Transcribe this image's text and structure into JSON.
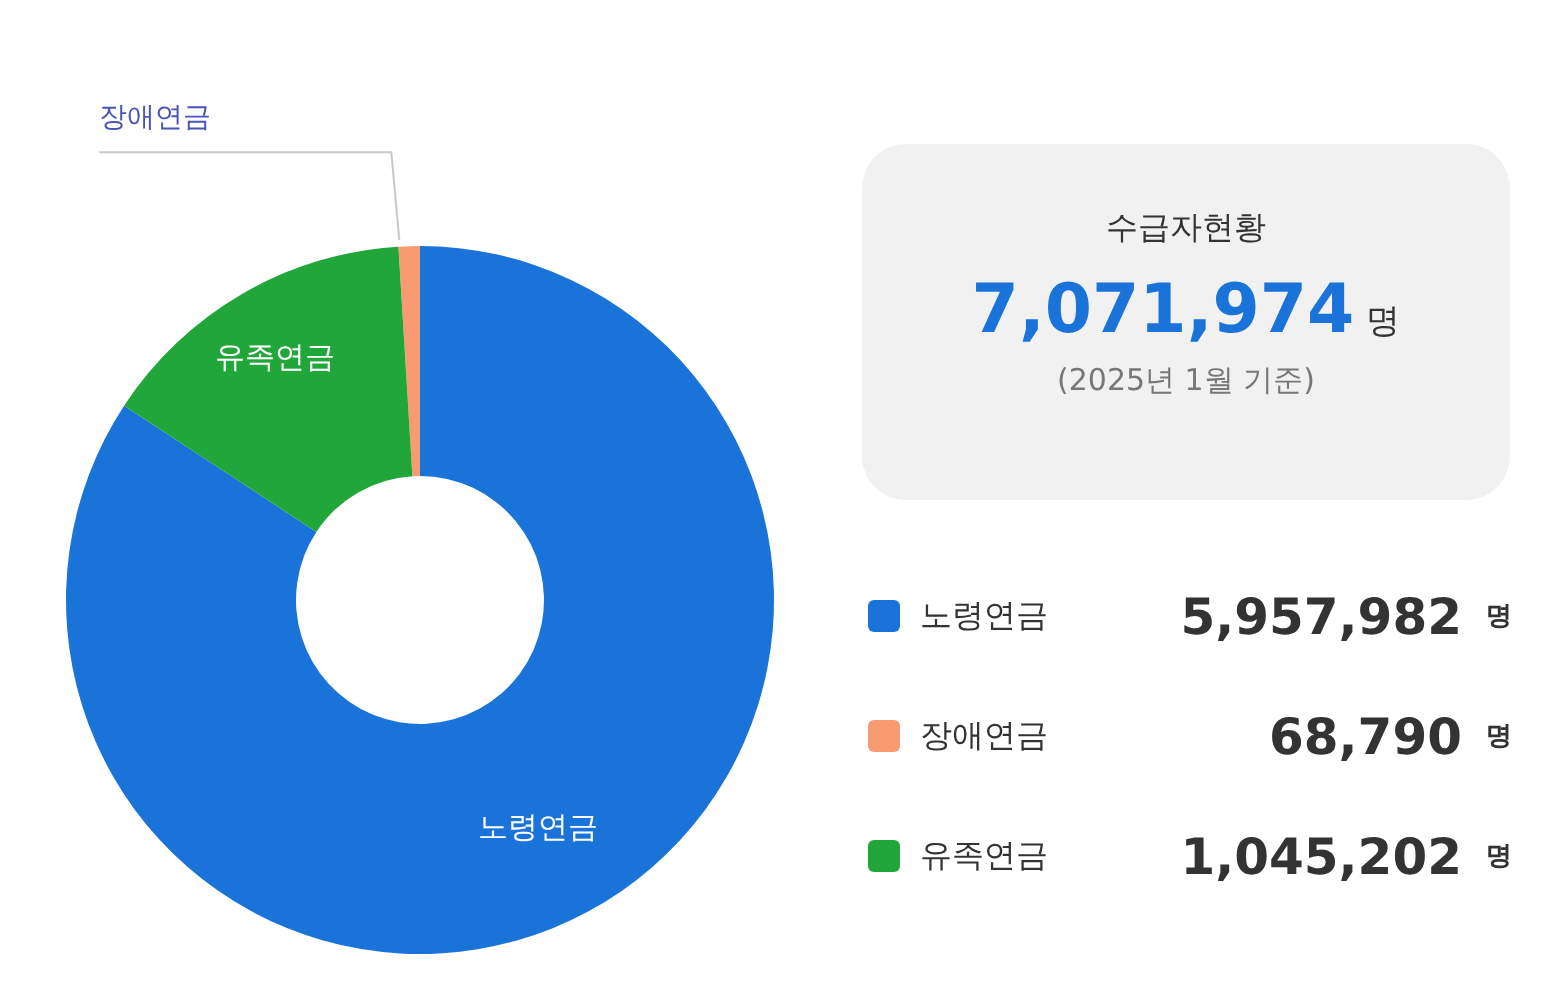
{
  "chart_data": {
    "type": "donut",
    "title": "수급자현황",
    "categories": [
      "노령연금",
      "장애연금",
      "유족연금"
    ],
    "values": [
      5957982,
      68790,
      1045202
    ],
    "colors": [
      "#1a73d8",
      "#f99b72",
      "#21a63a"
    ],
    "value_labels": [
      "5,957,982 명",
      "68,790 명",
      "1,045,202 명"
    ],
    "annotations": [
      "7,071,974 명",
      "(2025년 1월 기준)"
    ],
    "legend": "right"
  }
}
